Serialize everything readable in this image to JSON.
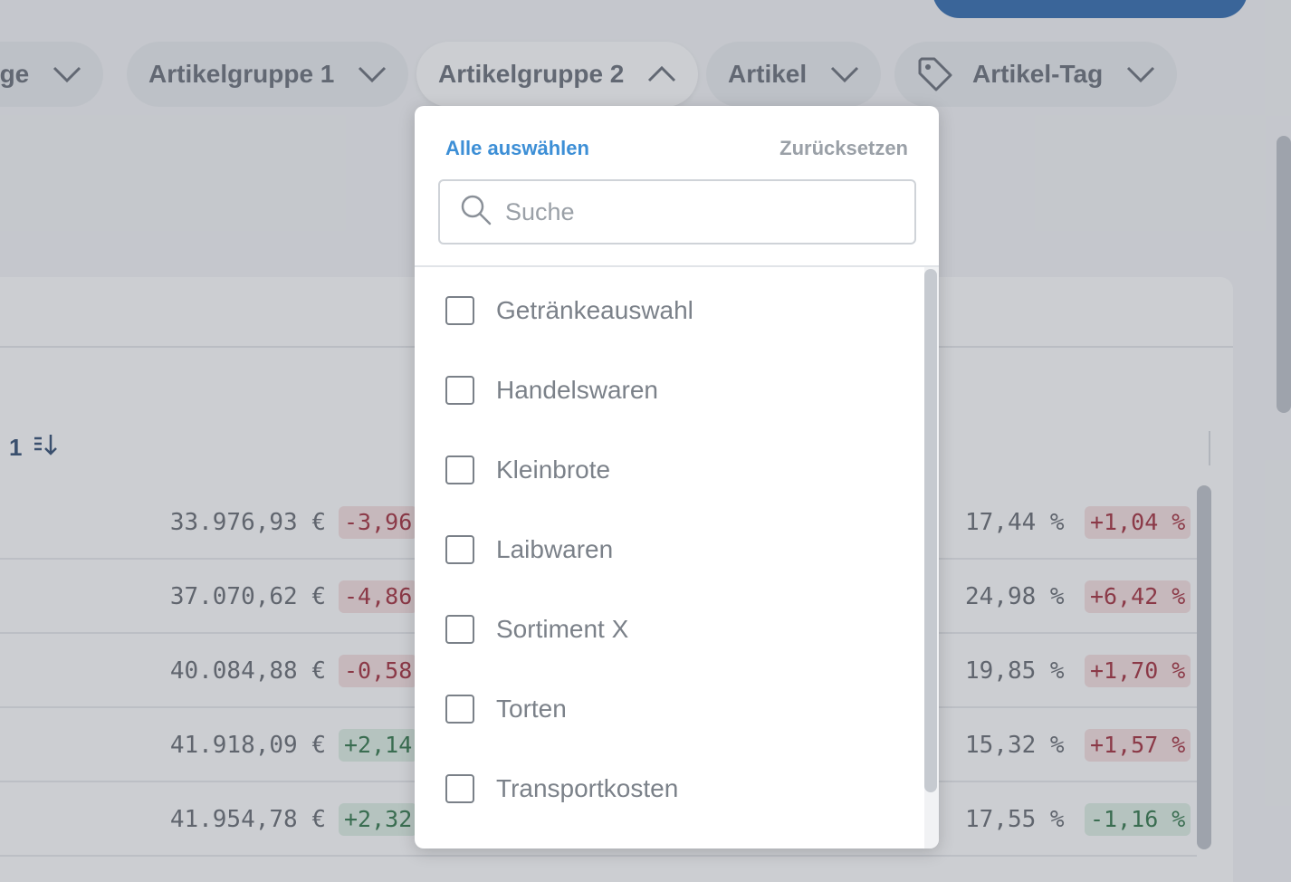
{
  "filters": {
    "chips": [
      {
        "label": "age",
        "state": "collapsed"
      },
      {
        "label": "Artikelgruppe 1",
        "state": "collapsed"
      },
      {
        "label": "Artikelgruppe 2",
        "state": "expanded"
      },
      {
        "label": "Artikel",
        "state": "collapsed"
      },
      {
        "label": "Artikel-Tag",
        "state": "collapsed",
        "icon": "tag-icon"
      }
    ]
  },
  "table": {
    "sort_column_label": "1",
    "rows": [
      {
        "value": "33.976,93 €",
        "change": "-3,96",
        "change_status": "negative",
        "percent": "17,44 %",
        "percent_change": "+1,04 %",
        "percent_change_status": "negative"
      },
      {
        "value": "37.070,62 €",
        "change": "-4,86",
        "change_status": "negative",
        "percent": "24,98 %",
        "percent_change": "+6,42 %",
        "percent_change_status": "negative"
      },
      {
        "value": "40.084,88 €",
        "change": "-0,58",
        "change_status": "negative",
        "percent": "19,85 %",
        "percent_change": "+1,70 %",
        "percent_change_status": "negative"
      },
      {
        "value": "41.918,09 €",
        "change": "+2,14",
        "change_status": "positive",
        "percent": "15,32 %",
        "percent_change": "+1,57 %",
        "percent_change_status": "negative"
      },
      {
        "value": "41.954,78 €",
        "change": "+2,32",
        "change_status": "positive",
        "percent": "17,55 %",
        "percent_change": "-1,16 %",
        "percent_change_status": "positive"
      }
    ]
  },
  "dropdown": {
    "select_all_label": "Alle auswählen",
    "reset_label": "Zurücksetzen",
    "search_placeholder": "Suche",
    "search_value": "",
    "options": [
      {
        "label": "Getränkeauswahl",
        "checked": false
      },
      {
        "label": "Handelswaren",
        "checked": false
      },
      {
        "label": "Kleinbrote",
        "checked": false
      },
      {
        "label": "Laibwaren",
        "checked": false
      },
      {
        "label": "Sortiment X",
        "checked": false
      },
      {
        "label": "Torten",
        "checked": false
      },
      {
        "label": "Transportkosten",
        "checked": false
      }
    ]
  },
  "colors": {
    "accent": "#3d8fd6",
    "primary_button": "#1f5fa8",
    "negative_text": "#9b1b2a",
    "negative_bg": "#f6dede",
    "positive_text": "#1f6b3a",
    "positive_bg": "#dcefe2"
  }
}
